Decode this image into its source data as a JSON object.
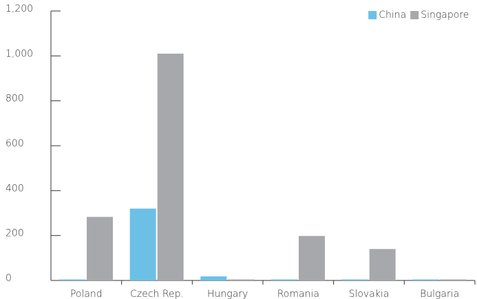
{
  "chart_data": {
    "type": "bar",
    "categories": [
      "Poland",
      "Czech Rep.",
      "Hungary",
      "Romania",
      "Slovakia",
      "Bulgaria"
    ],
    "series": [
      {
        "name": "China",
        "color": "#6cc0e5",
        "values": [
          0,
          320,
          18,
          0,
          0,
          0
        ]
      },
      {
        "name": "Singapore",
        "color": "#a7a8ab",
        "values": [
          283,
          1010,
          0,
          198,
          140,
          0
        ]
      }
    ],
    "ylim": [
      0,
      1200
    ],
    "yticks": [
      0,
      200,
      400,
      600,
      800,
      {
        "value": 1000,
        "label": "1,000"
      },
      {
        "value": 1200,
        "label": "1,200"
      }
    ],
    "legend": "top-right"
  }
}
